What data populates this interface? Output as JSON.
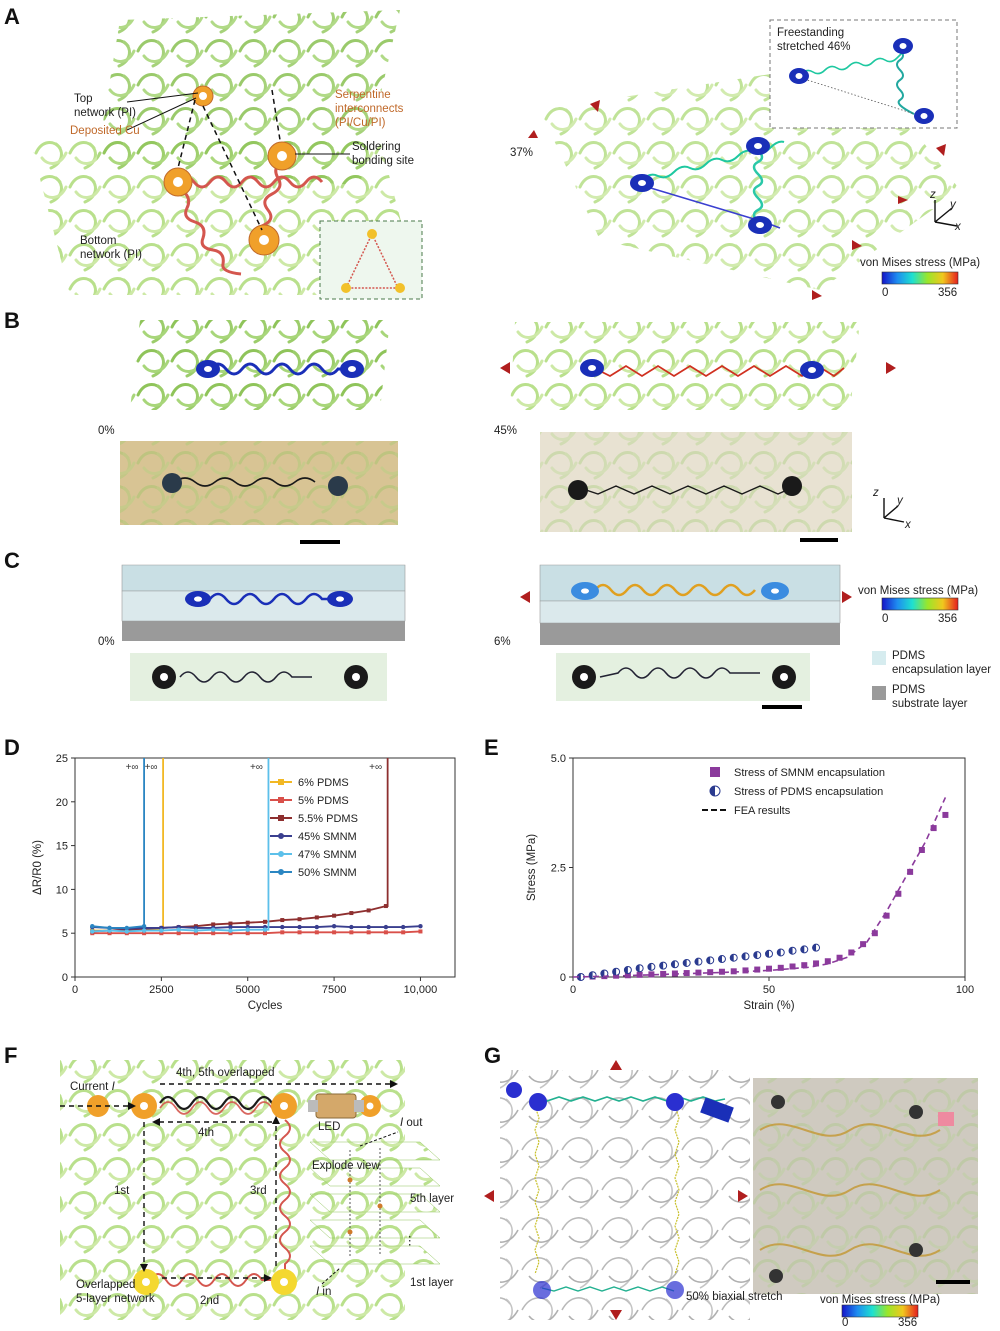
{
  "panels": {
    "A": "A",
    "B": "B",
    "C": "C",
    "D": "D",
    "E": "E",
    "F": "F",
    "G": "G"
  },
  "panelA": {
    "top_network": "Top\nnetwork (PI)",
    "deposited_cu": "Deposited Cu",
    "serpentine": "Serpentine\ninterconnects\n(PI/Cu/PI)",
    "soldering": "Soldering\nbonding site",
    "bottom_network": "Bottom\nnetwork (PI)",
    "strain": "37%",
    "freestanding": "Freestanding\nstretched 46%",
    "vm_title": "von Mises stress (MPa)",
    "vm_min": "0",
    "vm_max": "356",
    "axis_z": "z",
    "axis_y": "y",
    "axis_x": "x"
  },
  "panelB": {
    "strain_left": "0%",
    "strain_right": "45%",
    "axis_z": "z",
    "axis_y": "y",
    "axis_x": "x"
  },
  "panelC": {
    "strain_left": "0%",
    "strain_right": "6%",
    "vm_title": "von Mises stress (MPa)",
    "vm_min": "0",
    "vm_max": "356",
    "legend_encap": "PDMS\nencapsulation layer",
    "legend_sub": "PDMS\nsubstrate layer"
  },
  "panelF": {
    "current": "Current",
    "current_i": "I",
    "overlap45": "4th, 5th overlapped",
    "l4": "4th",
    "l1": "1st",
    "l3": "3rd",
    "l2": "2nd",
    "led": "LED",
    "explode": "Explode view",
    "iout_i": "I",
    "iout": " out",
    "l5layer": "5th layer",
    "l1layer": "1st layer",
    "iin_i": "I",
    "iin": " in",
    "dots": "⋮",
    "overlapped5": "Overlapped\n5-layer network"
  },
  "panelG": {
    "biaxial": "50% biaxial stretch",
    "vm_title": "von Mises stress (MPa)",
    "vm_min": "0",
    "vm_max": "356"
  },
  "colors": {
    "network_green": "#a8d67a",
    "pad_orange": "#f0a02a",
    "trace_red": "#d4564e",
    "pad_blue": "#1a2fb8"
  },
  "chart_data": [
    {
      "type": "line",
      "panel": "D",
      "xlabel": "Cycles",
      "ylabel": "ΔR/R0 (%)",
      "xlim": [
        0,
        11000
      ],
      "ylim": [
        0,
        25
      ],
      "xticks": [
        0,
        2500,
        5000,
        7500,
        10000
      ],
      "xtick_labels": [
        "0",
        "2500",
        "5000",
        "7500",
        "10,000"
      ],
      "yticks": [
        0,
        5,
        10,
        15,
        20,
        25
      ],
      "ytick_labels": [
        "0",
        "5",
        "10",
        "15",
        "20",
        "25"
      ],
      "infinity_label": "+∞",
      "series": [
        {
          "name": "6% PDMS",
          "color": "#f2b824",
          "x": [
            500,
            1000,
            1500,
            2000,
            2500
          ],
          "y": [
            5.3,
            5.3,
            5.3,
            5.4,
            5.4
          ],
          "fail_x": 2550
        },
        {
          "name": "5% PDMS",
          "color": "#d9504a",
          "x": [
            500,
            1000,
            1500,
            2000,
            2500,
            3000,
            3500,
            4000,
            4500,
            5000,
            5500,
            6000,
            6500,
            7000,
            7500,
            8000,
            8500,
            9000,
            9500,
            10000
          ],
          "y": [
            5.0,
            5.0,
            5.0,
            5.0,
            5.0,
            5.0,
            5.0,
            5.0,
            5.0,
            5.0,
            5.0,
            5.1,
            5.1,
            5.1,
            5.1,
            5.1,
            5.1,
            5.1,
            5.1,
            5.2
          ]
        },
        {
          "name": "5.5% PDMS",
          "color": "#8e2f2f",
          "x": [
            500,
            1000,
            1500,
            2000,
            2500,
            3000,
            3500,
            4000,
            4500,
            5000,
            5500,
            6000,
            6500,
            7000,
            7500,
            8000,
            8500,
            9000
          ],
          "y": [
            5.2,
            5.3,
            5.4,
            5.5,
            5.6,
            5.7,
            5.8,
            6.0,
            6.1,
            6.2,
            6.3,
            6.5,
            6.6,
            6.8,
            7.0,
            7.3,
            7.6,
            8.1
          ],
          "fail_x": 9050
        },
        {
          "name": "45% SMNM",
          "color": "#3a3f8f",
          "x": [
            500,
            1000,
            1500,
            2000,
            2500,
            3000,
            3500,
            4000,
            4500,
            5000,
            5500,
            6000,
            6500,
            7000,
            7500,
            8000,
            8500,
            9000,
            9500,
            10000
          ],
          "y": [
            5.7,
            5.6,
            5.5,
            5.6,
            5.6,
            5.7,
            5.6,
            5.6,
            5.7,
            5.7,
            5.7,
            5.7,
            5.7,
            5.7,
            5.8,
            5.7,
            5.7,
            5.7,
            5.7,
            5.8
          ]
        },
        {
          "name": "47% SMNM",
          "color": "#5cc0ea",
          "x": [
            500,
            1000,
            1500,
            2000,
            2500,
            3000,
            3500,
            4000,
            4500,
            5000,
            5500
          ],
          "y": [
            5.2,
            5.3,
            5.2,
            5.3,
            5.3,
            5.4,
            5.3,
            5.4,
            5.3,
            5.4,
            5.4
          ],
          "fail_x": 5600
        },
        {
          "name": "50% SMNM",
          "color": "#2b86c2",
          "x": [
            500,
            1000,
            1500,
            2000
          ],
          "y": [
            5.8,
            5.6,
            5.6,
            5.8
          ],
          "fail_x": 2000
        }
      ]
    },
    {
      "type": "scatter",
      "panel": "E",
      "xlabel": "Strain (%)",
      "ylabel": "Stress (MPa)",
      "xlim": [
        0,
        100
      ],
      "ylim": [
        0,
        5.0
      ],
      "xticks": [
        0,
        50,
        100
      ],
      "xtick_labels": [
        "0",
        "50",
        "100"
      ],
      "yticks": [
        0,
        2.5,
        5.0
      ],
      "ytick_labels": [
        "0",
        "2.5",
        "5.0"
      ],
      "series": [
        {
          "name": "Stress of SMNM encapsulation",
          "marker": "square",
          "color": "#8b3a9c",
          "x": [
            2,
            5,
            8,
            11,
            14,
            17,
            20,
            23,
            26,
            29,
            32,
            35,
            38,
            41,
            44,
            47,
            50,
            53,
            56,
            59,
            62,
            65,
            68,
            71,
            74,
            77,
            80,
            83,
            86,
            89,
            92,
            95
          ],
          "y": [
            0.0,
            0.01,
            0.02,
            0.03,
            0.04,
            0.05,
            0.06,
            0.07,
            0.08,
            0.09,
            0.1,
            0.11,
            0.12,
            0.13,
            0.15,
            0.17,
            0.19,
            0.21,
            0.24,
            0.27,
            0.31,
            0.36,
            0.44,
            0.56,
            0.75,
            1.0,
            1.4,
            1.9,
            2.4,
            2.9,
            3.4,
            3.7
          ]
        },
        {
          "name": "Stress of PDMS encapsulation",
          "marker": "half-circle",
          "color": "#2a3a8f",
          "x": [
            2,
            5,
            8,
            11,
            14,
            17,
            20,
            23,
            26,
            29,
            32,
            35,
            38,
            41,
            44,
            47,
            50,
            53,
            56,
            59,
            62
          ],
          "y": [
            0.0,
            0.04,
            0.08,
            0.12,
            0.16,
            0.2,
            0.23,
            0.26,
            0.29,
            0.32,
            0.35,
            0.38,
            0.41,
            0.44,
            0.47,
            0.5,
            0.53,
            0.56,
            0.6,
            0.63,
            0.67
          ]
        },
        {
          "name": "FEA results",
          "marker": "dashed-line",
          "color": "#8b3a9c",
          "x": [
            0,
            10,
            20,
            30,
            40,
            50,
            60,
            65,
            70,
            75,
            80,
            85,
            90,
            95
          ],
          "y": [
            0,
            0.02,
            0.05,
            0.08,
            0.11,
            0.15,
            0.22,
            0.3,
            0.45,
            0.8,
            1.5,
            2.3,
            3.1,
            4.1
          ]
        }
      ]
    }
  ]
}
